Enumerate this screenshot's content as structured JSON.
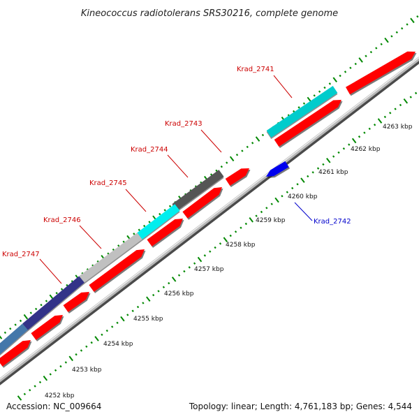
{
  "title": "Kineococcus radiotolerans SRS30216, complete genome",
  "accession": "Accession: NC_009664",
  "summary": "Topology: linear; Length: 4,761,183 bp; Genes: 4,544",
  "colors": {
    "backbone": "#a6a6a6",
    "forward_gene": "#ff0000",
    "reverse_gene": "#0000ee",
    "tick": "#008800",
    "label_forward": "#cc0000",
    "label_reverse": "#0000cc"
  },
  "scale_ticks": [
    {
      "kbp": 4252,
      "label": "4252 kbp"
    },
    {
      "kbp": 4253,
      "label": "4253 kbp"
    },
    {
      "kbp": 4254,
      "label": "4254 kbp"
    },
    {
      "kbp": 4255,
      "label": "4255 kbp"
    },
    {
      "kbp": 4256,
      "label": "4256 kbp"
    },
    {
      "kbp": 4257,
      "label": "4257 kbp"
    },
    {
      "kbp": 4258,
      "label": "4258 kbp"
    },
    {
      "kbp": 4259,
      "label": "4259 kbp"
    },
    {
      "kbp": 4260,
      "label": "4260 kbp"
    },
    {
      "kbp": 4261,
      "label": "4261 kbp"
    },
    {
      "kbp": 4262,
      "label": "4262 kbp"
    },
    {
      "kbp": 4263,
      "label": "4263 kbp"
    }
  ],
  "gene_labels": [
    {
      "name": "Krad_2741",
      "strand": "forward"
    },
    {
      "name": "Krad_2742",
      "strand": "reverse"
    },
    {
      "name": "Krad_2743",
      "strand": "forward"
    },
    {
      "name": "Krad_2744",
      "strand": "forward"
    },
    {
      "name": "Krad_2745",
      "strand": "forward"
    },
    {
      "name": "Krad_2746",
      "strand": "forward"
    },
    {
      "name": "Krad_2747",
      "strand": "forward"
    }
  ],
  "feature_bars": [
    {
      "name": "Krad_2741",
      "color": "#00cccc"
    },
    {
      "name": "Krad_2743",
      "color": "#555555"
    },
    {
      "name": "Krad_2745",
      "color": "#00eeee"
    },
    {
      "name": "Krad_2746",
      "color": "#c0c0c0"
    },
    {
      "name": "Krad_2747",
      "color": "#333388"
    },
    {
      "name": "Krad_2747",
      "color": "#4477aa"
    }
  ]
}
